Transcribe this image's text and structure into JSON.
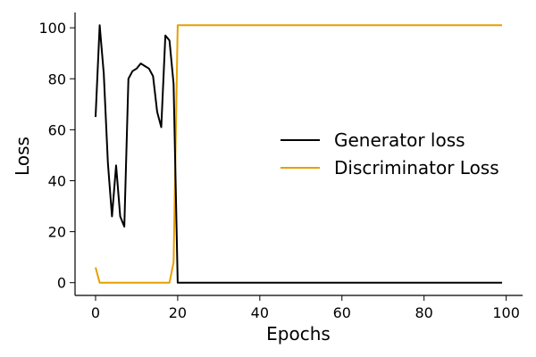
{
  "chart_data": {
    "type": "line",
    "title": "",
    "xlabel": "Epochs",
    "ylabel": "Loss",
    "xlim": [
      -5,
      104
    ],
    "ylim": [
      -5,
      106
    ],
    "x_ticks": [
      0,
      20,
      40,
      60,
      80,
      100
    ],
    "y_ticks": [
      0,
      20,
      40,
      60,
      80,
      100
    ],
    "grid": false,
    "legend_position": "center-right",
    "series": [
      {
        "name": "Generator loss",
        "color": "#000000",
        "points": [
          [
            0,
            65
          ],
          [
            1,
            101
          ],
          [
            2,
            82
          ],
          [
            3,
            47
          ],
          [
            4,
            26
          ],
          [
            5,
            46
          ],
          [
            6,
            26
          ],
          [
            7,
            22
          ],
          [
            8,
            80
          ],
          [
            9,
            83
          ],
          [
            10,
            84
          ],
          [
            11,
            86
          ],
          [
            12,
            85
          ],
          [
            13,
            84
          ],
          [
            14,
            81
          ],
          [
            15,
            67
          ],
          [
            16,
            61
          ],
          [
            17,
            97
          ],
          [
            18,
            95
          ],
          [
            19,
            78
          ],
          [
            20,
            0
          ],
          [
            99,
            0
          ]
        ]
      },
      {
        "name": "Discriminator Loss",
        "color": "#e69f00",
        "points": [
          [
            0,
            6
          ],
          [
            1,
            0
          ],
          [
            5,
            0
          ],
          [
            10,
            0
          ],
          [
            15,
            0
          ],
          [
            18,
            0
          ],
          [
            19,
            8
          ],
          [
            20,
            101
          ],
          [
            99,
            101
          ]
        ]
      }
    ]
  }
}
